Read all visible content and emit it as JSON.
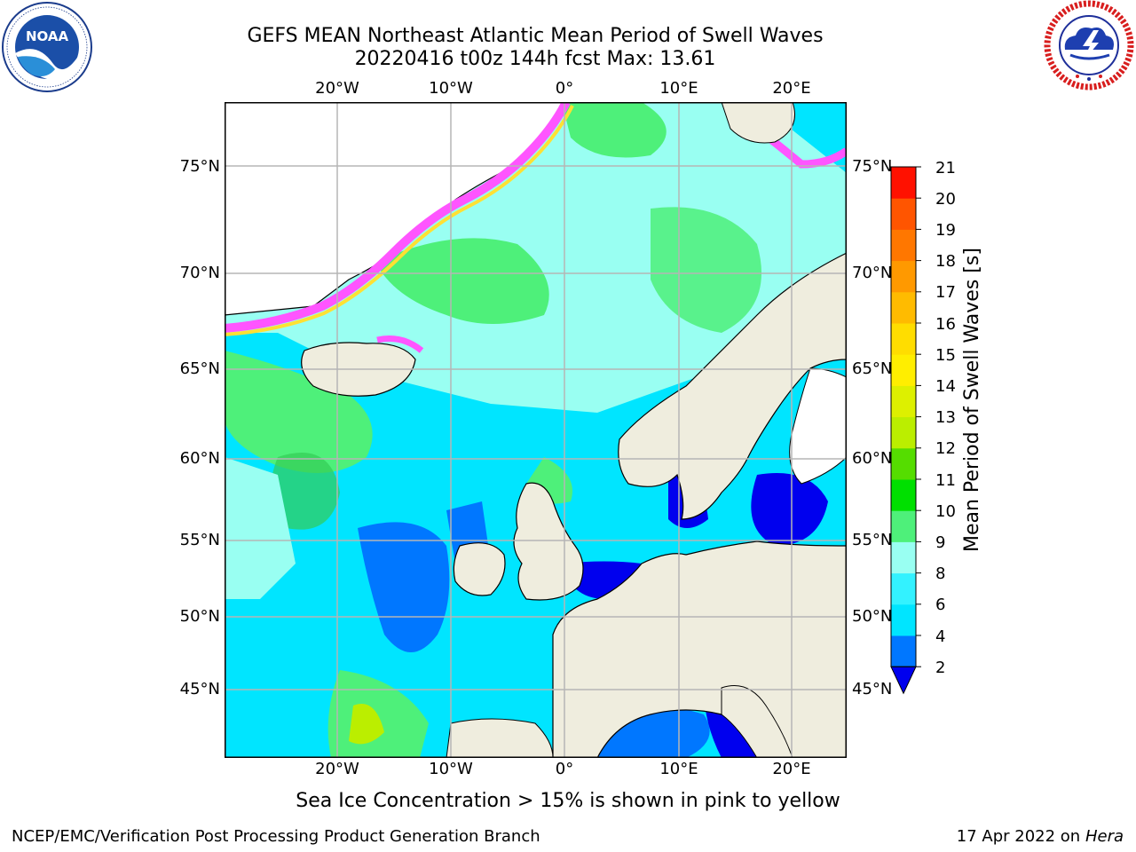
{
  "header": {
    "title_line1": "GEFS MEAN Northeast Atlantic Mean Period of Swell Waves",
    "title_line2": "20220416 t00z 144h fcst   Max: 13.61"
  },
  "logos": {
    "left": {
      "icon": "noaa-logo-icon",
      "text": "NOAA",
      "ring_text": "NATIONAL OCEANIC AND ATMOSPHERIC ADMINISTRATION · U.S. DEPARTMENT OF COMMERCE"
    },
    "right": {
      "icon": "nws-logo-icon",
      "ring_text": "NATIONAL WEATHER SERVICE"
    }
  },
  "map": {
    "top_lon_labels": [
      "20°W",
      "10°W",
      "0°",
      "10°E",
      "20°E"
    ],
    "bottom_lon_labels": [
      "20°W",
      "10°W",
      "0°",
      "10°E",
      "20°E"
    ],
    "left_lat_labels": [
      "75°N",
      "70°N",
      "65°N",
      "60°N",
      "55°N",
      "50°N",
      "45°N"
    ],
    "right_lat_labels": [
      "75°N",
      "70°N",
      "65°N",
      "60°N",
      "55°N",
      "50°N",
      "45°N"
    ],
    "colors": {
      "land": "#efedde",
      "ocean_low": "#0000ee",
      "ocean_mid": "#00e5ff",
      "ocean_high": "#4ef07a",
      "ice_pink": "#ff55ff",
      "ice_yellow": "#ffe033",
      "grid": "#b5b5b5"
    }
  },
  "colorbar": {
    "title": "Mean Period of Swell Waves [s]",
    "ticks": [
      "2",
      "4",
      "6",
      "8",
      "9",
      "10",
      "11",
      "12",
      "13",
      "14",
      "15",
      "16",
      "17",
      "18",
      "19",
      "20",
      "21"
    ],
    "colors": [
      "#0077ff",
      "#00e5ff",
      "#33f2ff",
      "#99fff2",
      "#4ef07a",
      "#00e000",
      "#55dd00",
      "#bbee00",
      "#ddf000",
      "#ffee00",
      "#ffdd00",
      "#ffbb00",
      "#ff9900",
      "#ff7700",
      "#ff5500",
      "#ff1100"
    ],
    "extend_low_color": "#0000ee"
  },
  "caption": "Sea Ice Concentration > 15% is shown in pink to yellow",
  "footer": {
    "left": "NCEP/EMC/Verification Post Processing Product Generation Branch",
    "right_date": "17 Apr 2022 on",
    "right_host": "Hera"
  }
}
